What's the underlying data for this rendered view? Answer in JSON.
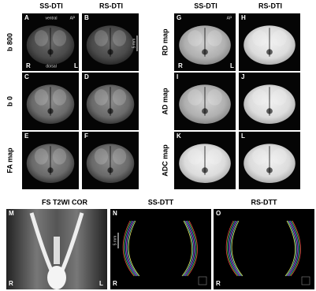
{
  "left": {
    "columns": [
      "SS-DTI",
      "RS-DTI"
    ],
    "rows": [
      "b 800",
      "b 0",
      "FA map"
    ]
  },
  "right": {
    "columns": [
      "SS-DTI",
      "RS-DTI"
    ],
    "rows": [
      "RD map",
      "AD map",
      "ADC map"
    ]
  },
  "bottom": {
    "columns": [
      "FS T2WI COR",
      "SS-DTT",
      "RS-DTT"
    ]
  },
  "panels": [
    "A",
    "B",
    "C",
    "D",
    "E",
    "F",
    "G",
    "H",
    "I",
    "J",
    "K",
    "L",
    "M",
    "N",
    "O"
  ],
  "annotations": {
    "ventral": "ventral",
    "dorsal": "dorsal",
    "right": "R",
    "left": "L",
    "ap": "AP",
    "scale": "5 mm"
  }
}
